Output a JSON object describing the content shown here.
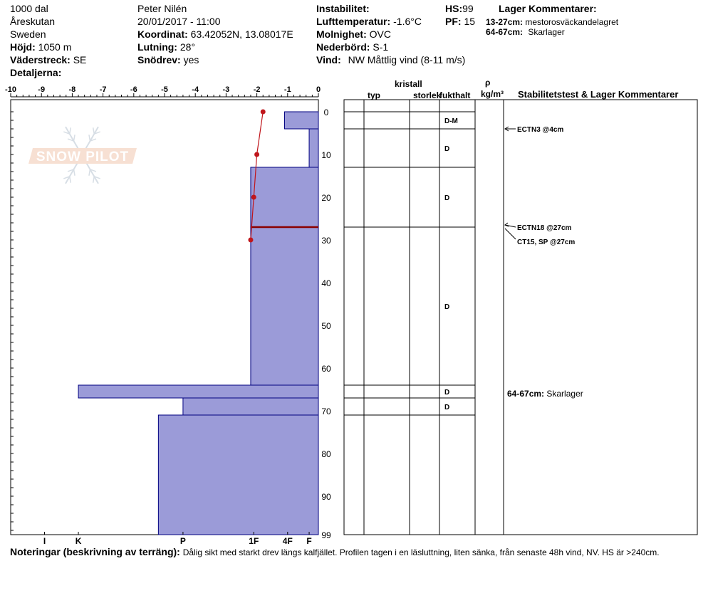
{
  "header": {
    "location_name": "1000 dal",
    "area": "Åreskutan",
    "country": "Sweden",
    "elevation_label": "Höjd:",
    "elevation_value": "1050 m",
    "aspect_label": "Väderstreck:",
    "aspect_value": "SE",
    "details_label": "Detaljerna:",
    "observer": "Peter Nilén",
    "datetime": "20/01/2017 - 11:00",
    "coord_label": "Koordinat:",
    "coord_value": "63.42052N, 13.08017E",
    "slope_label": "Lutning:",
    "slope_value": "28°",
    "drift_label": "Snödrev:",
    "drift_value": "yes",
    "instability_label": "Instabilitet:",
    "airtemp_label": "Lufttemperatur:",
    "airtemp_value": "-1.6°C",
    "sky_label": "Molnighet:",
    "sky_value": "OVC",
    "precip_label": "Nederbörd:",
    "precip_value": "S-1",
    "wind_label": "Vind:",
    "wind_value": "NW Måttlig vind (8-11 m/s)",
    "hs_label": "HS:",
    "hs_value": "99",
    "pf_label": "PF:",
    "pf_value": "15",
    "layer_comments_title": "Lager Kommentarer:",
    "layer_comments": [
      {
        "range": "13-27cm:",
        "text": "mestorosväckandelagret"
      },
      {
        "range": "64-67cm:",
        "text": "Skarlager"
      }
    ]
  },
  "watermark": "SNOW PILOT",
  "table": {
    "crystal_header": "kristall",
    "type_header": "typ",
    "size_header": "storlek",
    "moisture_header": "fukthalt",
    "rho_header": "ρ",
    "density_unit": "kg/m³",
    "stability_header": "Stabilitetstest & Lager Kommentarer",
    "stability_tests": [
      {
        "text": "ECTN3 @4cm",
        "depth": 4
      },
      {
        "text": "ECTN18 @27cm",
        "depth": 27
      },
      {
        "text": "CT15, SP @27cm",
        "depth": 27
      }
    ],
    "layer_comment_in_table": {
      "range": "64-67cm:",
      "text": "Skarlager"
    }
  },
  "chart_data": {
    "type": "snow_profile",
    "temperature_axis": {
      "ticks": [
        -10,
        -9,
        -8,
        -7,
        -6,
        -5,
        -4,
        -3,
        -2,
        -1,
        0
      ],
      "labels": [
        "-10",
        "-9",
        "-8",
        "-7",
        "-6",
        "-5",
        "-4",
        "-3",
        "-2",
        "-1",
        "0"
      ],
      "range": [
        -10,
        0
      ]
    },
    "depth_axis": {
      "ticks": [
        0,
        10,
        20,
        30,
        40,
        50,
        60,
        70,
        80,
        90,
        99
      ],
      "labels": [
        "0",
        "10",
        "20",
        "30",
        "40",
        "50",
        "60",
        "70",
        "80",
        "90",
        "99"
      ],
      "range": [
        0,
        99
      ]
    },
    "hardness_axis": {
      "labels": [
        "I",
        "K",
        "P",
        "1F",
        "4F",
        "F"
      ],
      "temp_equiv": [
        -8.9,
        -7.8,
        -4.4,
        -2.1,
        -1.0,
        -0.3
      ]
    },
    "layers": [
      {
        "top": 0,
        "bottom": 4,
        "hardness": -1.1,
        "moisture": "D-M"
      },
      {
        "top": 4,
        "bottom": 13,
        "hardness": -0.3,
        "moisture": "D"
      },
      {
        "top": 13,
        "bottom": 27,
        "hardness": -2.2,
        "moisture": "D"
      },
      {
        "top": 27,
        "bottom": 64,
        "hardness": -2.2,
        "moisture": "D"
      },
      {
        "top": 64,
        "bottom": 67,
        "hardness": -7.8,
        "moisture": "D"
      },
      {
        "top": 67,
        "bottom": 71,
        "hardness": -4.4,
        "moisture": "D"
      },
      {
        "top": 71,
        "bottom": 99,
        "hardness": -5.2,
        "moisture": ""
      }
    ],
    "weak_layer_depth": 27,
    "temperature_profile": [
      {
        "depth": 0,
        "temp": -1.8
      },
      {
        "depth": 10,
        "temp": -2.0
      },
      {
        "depth": 20,
        "temp": -2.1
      },
      {
        "depth": 30,
        "temp": -2.2
      }
    ],
    "colors": {
      "layer_fill": "#9b9bd8",
      "layer_stroke": "#000080",
      "temperature": "#c0161c",
      "weak_layer": "#8b0000"
    }
  },
  "notes": {
    "label": "Noteringar (beskrivning av terräng):",
    "text": "Dålig sikt med starkt drev längs kalfjället. Profilen tagen i en läsluttning, liten sänka, från senaste 48h vind, NV. HS är >240cm."
  }
}
